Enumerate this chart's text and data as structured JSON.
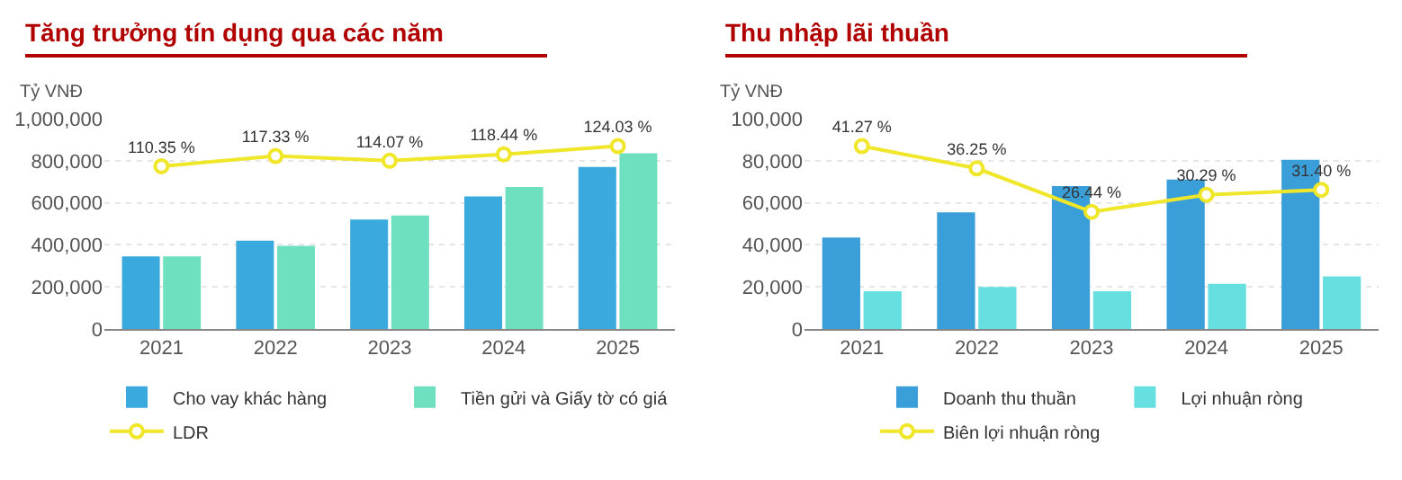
{
  "chart_data": [
    {
      "type": "bar",
      "title": "Tăng trưởng tín dụng qua các năm",
      "ylabel": "Tỷ VNĐ",
      "categories": [
        "2021",
        "2022",
        "2023",
        "2024",
        "2025"
      ],
      "series": [
        {
          "name": "Cho vay khác hàng",
          "color": "#3aa9de",
          "values": [
            345000,
            420000,
            520000,
            630000,
            770000
          ]
        },
        {
          "name": "Tiền gửi và Giấy tờ có giá",
          "color": "#6ee0bf",
          "values": [
            345000,
            395000,
            540000,
            675000,
            835000
          ]
        },
        {
          "name": "LDR",
          "type": "line",
          "axis": "y2",
          "color": "#f0e62a",
          "marker": "circle",
          "values": [
            110.35,
            117.33,
            114.07,
            118.44,
            124.03
          ],
          "value_labels": [
            "110.35 %",
            "117.33 %",
            "114.07 %",
            "118.44 %",
            "124.03 %"
          ]
        }
      ],
      "ylim": [
        0,
        1000000
      ],
      "yticks": [
        {
          "value": 0,
          "label": "0"
        },
        {
          "value": 200000,
          "label": "200,000"
        },
        {
          "value": 400000,
          "label": "400,000"
        },
        {
          "value": 600000,
          "label": "600,000"
        },
        {
          "value": 800000,
          "label": "800,000"
        },
        {
          "value": 1000000,
          "label": "1,000,000"
        }
      ],
      "grid": "y",
      "legend": "bottom"
    },
    {
      "type": "bar",
      "title": "Thu nhập lãi thuần",
      "ylabel": "Tỷ VNĐ",
      "categories": [
        "2021",
        "2022",
        "2023",
        "2024",
        "2025"
      ],
      "series": [
        {
          "name": "Doanh thu thuần",
          "color": "#3a9fd8",
          "values": [
            43500,
            55500,
            68000,
            71000,
            80500
          ]
        },
        {
          "name": "Lợi nhuận ròng",
          "color": "#66dfe0",
          "values": [
            18000,
            20000,
            18000,
            21500,
            25000
          ]
        },
        {
          "name": "Biên lợi nhuận ròng",
          "type": "line",
          "axis": "y2",
          "color": "#f0e62a",
          "marker": "circle",
          "values": [
            41.27,
            36.25,
            26.44,
            30.29,
            31.4
          ],
          "value_labels": [
            "41.27 %",
            "36.25 %",
            "26.44 %",
            "30.29 %",
            "31.40 %"
          ]
        }
      ],
      "ylim": [
        0,
        100000
      ],
      "yticks": [
        {
          "value": 0,
          "label": "0"
        },
        {
          "value": 20000,
          "label": "20,000"
        },
        {
          "value": 40000,
          "label": "40,000"
        },
        {
          "value": 60000,
          "label": "60,000"
        },
        {
          "value": 80000,
          "label": "80,000"
        },
        {
          "value": 100000,
          "label": "100,000"
        }
      ],
      "grid": "y",
      "legend": "bottom"
    }
  ]
}
